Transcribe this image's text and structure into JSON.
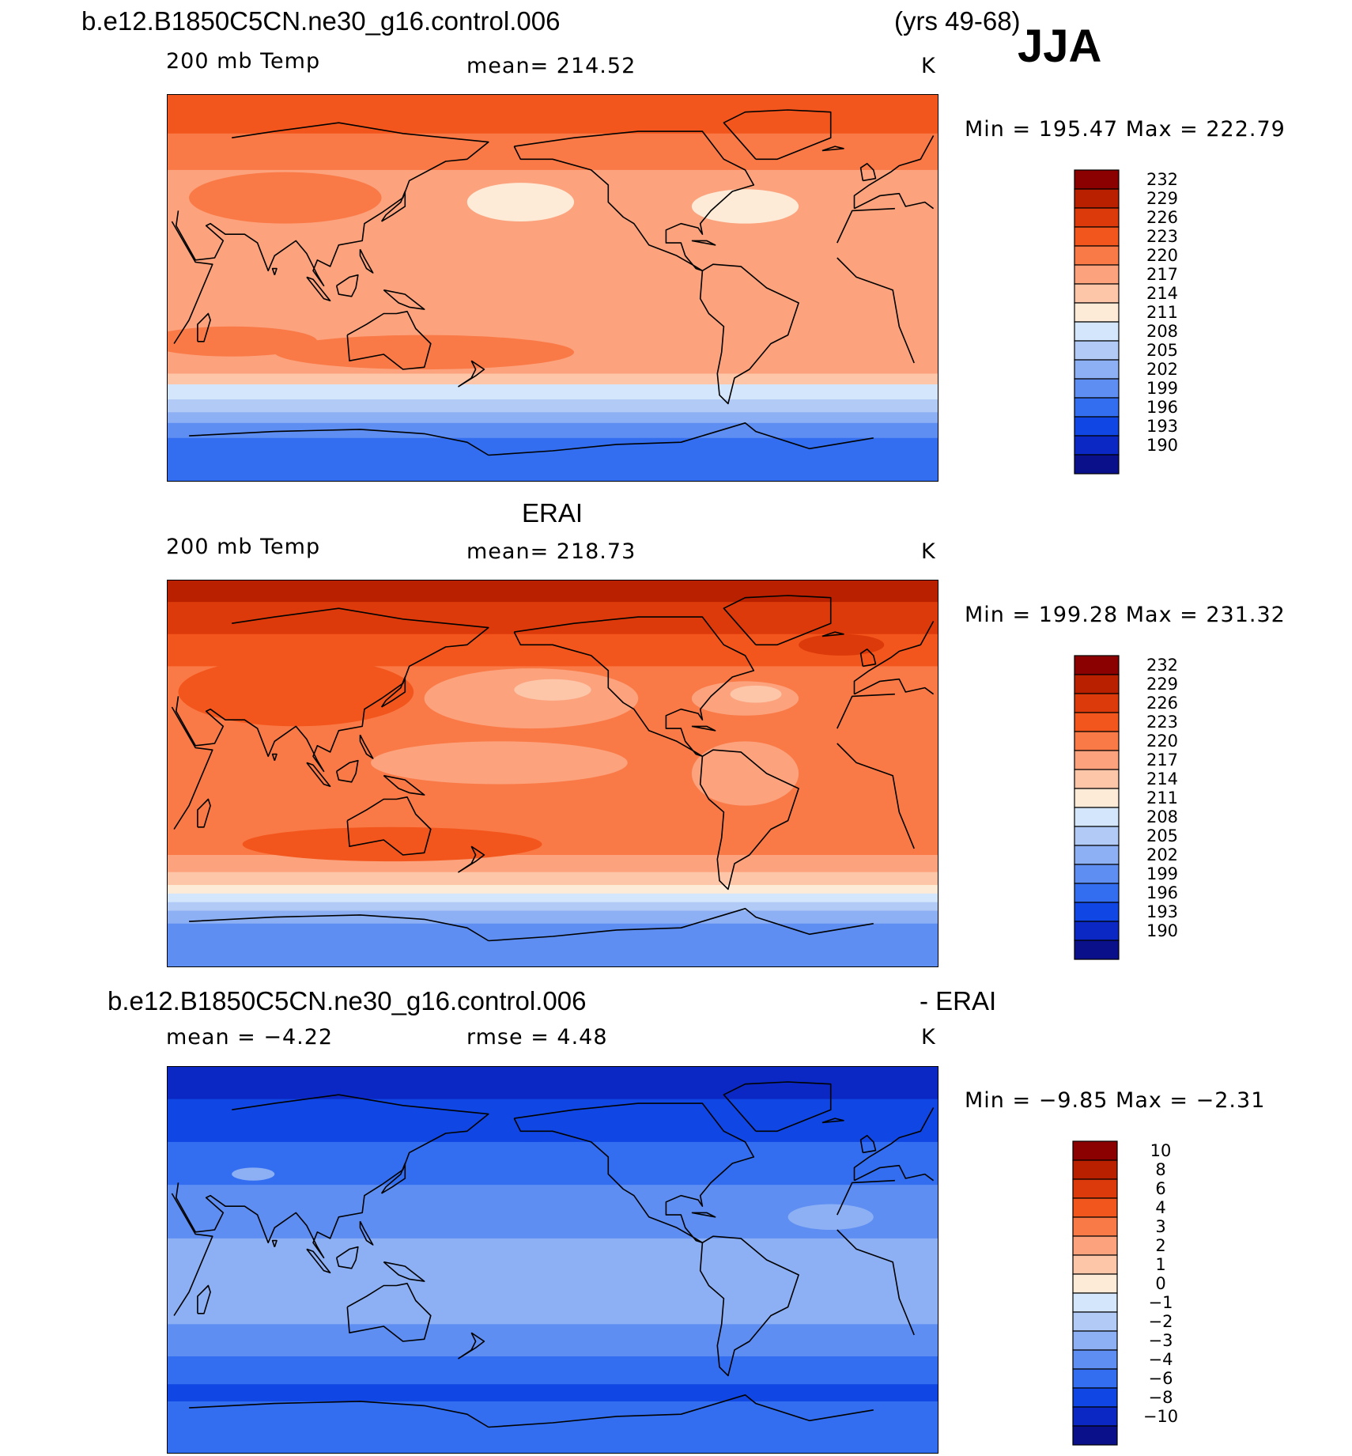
{
  "case_name": "b.e12.B1850C5CN.ne30_g16.control.006",
  "years": "(yrs 49-68)",
  "season": "JJA",
  "panels": [
    {
      "title": "",
      "left": "200 mb Temp",
      "center": "mean= 214.52",
      "units": "K",
      "minmax": "Min = 195.47 Max = 222.79",
      "scale": "abs",
      "scheme": "model"
    },
    {
      "title": "ERAI",
      "left": "200 mb Temp",
      "center": "mean= 218.73",
      "units": "K",
      "minmax": "Min = 199.28 Max = 231.32",
      "scale": "abs",
      "scheme": "obs"
    },
    {
      "title": "b.e12.B1850C5CN.ne30_g16.control.006",
      "title_right": "- ERAI",
      "left": "mean =  −4.22",
      "center": "rmse =   4.48",
      "units": "K",
      "minmax": "Min =  −9.85 Max =  −2.31",
      "scale": "diff",
      "scheme": "diff"
    }
  ],
  "colorbars": {
    "abs": {
      "labels": [
        "232",
        "229",
        "226",
        "223",
        "220",
        "217",
        "214",
        "211",
        "208",
        "205",
        "202",
        "199",
        "196",
        "193",
        "190"
      ],
      "colors": [
        "#8b0000",
        "#b82000",
        "#dc3a0a",
        "#f3561c",
        "#fa7a47",
        "#fca37e",
        "#fdc6a9",
        "#fdebd7",
        "#d4e6fb",
        "#b1cbf6",
        "#8db0f4",
        "#5e8ef2",
        "#336ef0",
        "#1046e3",
        "#0b28c4",
        "#0a0f8a"
      ]
    },
    "diff": {
      "labels": [
        "10",
        "8",
        "6",
        "4",
        "3",
        "2",
        "1",
        "0",
        "−1",
        "−2",
        "−3",
        "−4",
        "−6",
        "−8",
        "−10"
      ],
      "colors": [
        "#8b0000",
        "#b82000",
        "#dc3a0a",
        "#f3561c",
        "#fa7a47",
        "#fca37e",
        "#fdc6a9",
        "#fdebd7",
        "#d4e6fb",
        "#b1cbf6",
        "#8db0f4",
        "#5e8ef2",
        "#336ef0",
        "#1046e3",
        "#0b28c4",
        "#0a0f8a"
      ]
    }
  }
}
